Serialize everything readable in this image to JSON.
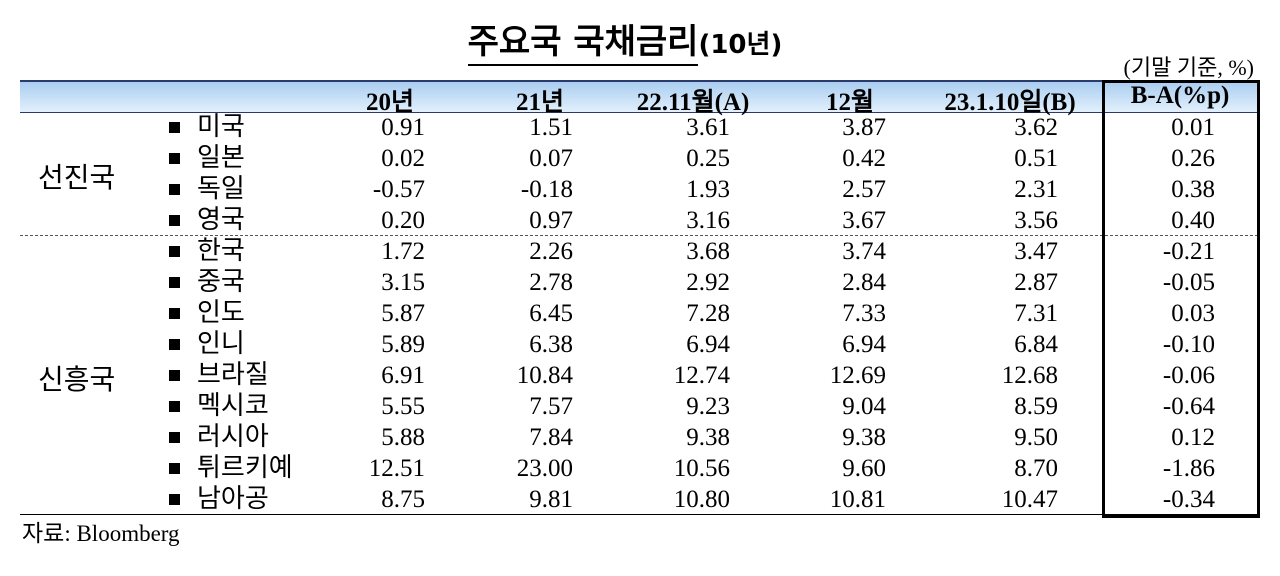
{
  "title": "주요국 국채금리",
  "title_suffix": "(10년)",
  "unit": "(기말 기준, %)",
  "table": {
    "header": [
      "20년",
      "21년",
      "22.11월(A)",
      "12월",
      "23.1.10일(B)",
      "B-A(%p)"
    ],
    "groups": [
      {
        "label": "선진국",
        "rows": [
          {
            "name": "미국",
            "values": [
              "0.91",
              "1.51",
              "3.61",
              "3.87",
              "3.62",
              "0.01"
            ]
          },
          {
            "name": "일본",
            "values": [
              "0.02",
              "0.07",
              "0.25",
              "0.42",
              "0.51",
              "0.26"
            ]
          },
          {
            "name": "독일",
            "values": [
              "-0.57",
              "-0.18",
              "1.93",
              "2.57",
              "2.31",
              "0.38"
            ]
          },
          {
            "name": "영국",
            "values": [
              "0.20",
              "0.97",
              "3.16",
              "3.67",
              "3.56",
              "0.40"
            ]
          }
        ]
      },
      {
        "label": "신흥국",
        "rows": [
          {
            "name": "한국",
            "values": [
              "1.72",
              "2.26",
              "3.68",
              "3.74",
              "3.47",
              "-0.21"
            ]
          },
          {
            "name": "중국",
            "values": [
              "3.15",
              "2.78",
              "2.92",
              "2.84",
              "2.87",
              "-0.05"
            ]
          },
          {
            "name": "인도",
            "values": [
              "5.87",
              "6.45",
              "7.28",
              "7.33",
              "7.31",
              "0.03"
            ]
          },
          {
            "name": "인니",
            "values": [
              "5.89",
              "6.38",
              "6.94",
              "6.94",
              "6.84",
              "-0.10"
            ]
          },
          {
            "name": "브라질",
            "values": [
              "6.91",
              "10.84",
              "12.74",
              "12.69",
              "12.68",
              "-0.06"
            ]
          },
          {
            "name": "멕시코",
            "values": [
              "5.55",
              "7.57",
              "9.23",
              "9.04",
              "8.59",
              "-0.64"
            ]
          },
          {
            "name": "러시아",
            "values": [
              "5.88",
              "7.84",
              "9.38",
              "9.38",
              "9.50",
              "0.12"
            ]
          },
          {
            "name": "튀르키예",
            "values": [
              "12.51",
              "23.00",
              "10.56",
              "9.60",
              "8.70",
              "-1.86"
            ]
          },
          {
            "name": "남아공",
            "values": [
              "8.75",
              "9.81",
              "10.80",
              "10.81",
              "10.47",
              "-0.34"
            ]
          }
        ]
      }
    ]
  },
  "source": "자료: Bloomberg"
}
